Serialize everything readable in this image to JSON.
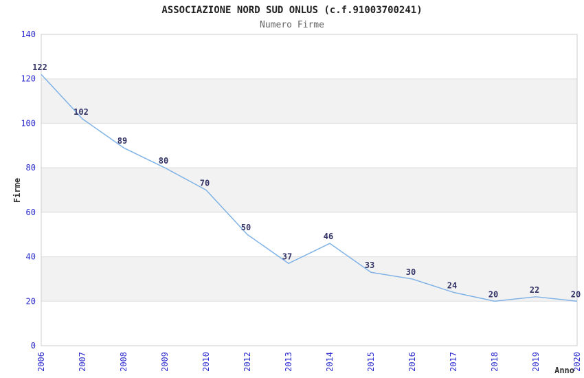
{
  "chart_data": {
    "type": "line",
    "title": "ASSOCIAZIONE NORD SUD ONLUS (c.f.91003700241)",
    "subtitle": "Numero Firme",
    "xlabel": "Anno",
    "ylabel": "Firme",
    "categories": [
      "2006",
      "2007",
      "2008",
      "2009",
      "2010",
      "2012",
      "2013",
      "2014",
      "2015",
      "2016",
      "2017",
      "2018",
      "2019",
      "2020"
    ],
    "series": [
      {
        "name": "Numero Firme",
        "values": [
          122,
          102,
          89,
          80,
          70,
          50,
          37,
          46,
          33,
          30,
          24,
          20,
          22,
          20
        ]
      }
    ],
    "ylim": [
      0,
      140
    ],
    "ytick_step": 20,
    "grid": true,
    "legend": "none",
    "bands": "alternating-horizontal",
    "data_labels_visible": true,
    "x_tick_rotation": -90,
    "colors": {
      "line": "#7fb2e6",
      "tick_label": "#2b2bd0",
      "data_label": "#333366",
      "band": "#f2f2f2",
      "gridline": "#dddddd",
      "plot_border": "#cccccc",
      "title": "#222222",
      "subtitle": "#666666",
      "axis_title": "#333333",
      "background": "#ffffff"
    }
  }
}
